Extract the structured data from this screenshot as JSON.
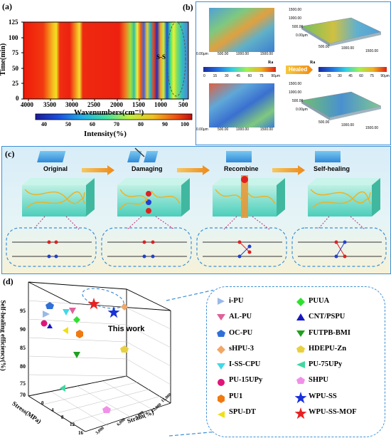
{
  "panel_a": {
    "label": "(a)",
    "y_axis_title": "Time(min)",
    "x_axis_title": "Wavenumbers(cm⁻¹)",
    "y_ticks": [
      "125",
      "100",
      "75",
      "50",
      "25",
      "0"
    ],
    "x_ticks": [
      "4000",
      "3500",
      "3000",
      "2500",
      "2000",
      "1500",
      "1000",
      "500"
    ],
    "annotation": "S-S",
    "colorbar_title": "Intensity(%)",
    "colorbar_ticks": [
      "40",
      "50",
      "60",
      "70",
      "80",
      "90",
      "100"
    ]
  },
  "panel_b": {
    "label": "(b)",
    "top_left_ticks": [
      "0.00μm",
      "500.00",
      "1000.00",
      "1500.00"
    ],
    "top_right_ticks": [
      "1500.00",
      "1000.00",
      "500.00",
      "0.00μm",
      "500.00",
      "1000.00",
      "1500.00"
    ],
    "ra_label": "Ra",
    "ra_ticks": [
      "0",
      "15",
      "30",
      "45",
      "60",
      "75",
      "90μm"
    ],
    "healed_label": "Healed",
    "bottom_left_ticks": [
      "0.00μm",
      "500.00",
      "1000.00",
      "1500.00"
    ],
    "bottom_right_ticks": [
      "1500.00",
      "1000.00",
      "500.00",
      "0.00μm",
      "500.00",
      "1000.00",
      "1500.00"
    ]
  },
  "panel_c": {
    "label": "(c)",
    "stages": [
      "Original",
      "Damaging",
      "Recombine",
      "Self-healing"
    ]
  },
  "panel_d": {
    "label": "(d)",
    "z_axis_title": "Self-healing efficiency(%)",
    "x_axis_title": "Stress(MPa)",
    "y_axis_title": "Strain(%)",
    "z_ticks": [
      "95",
      "90",
      "85",
      "80",
      "75",
      "70"
    ],
    "stress_ticks": [
      "0",
      "4",
      "8",
      "12",
      "16"
    ],
    "strain_ticks": [
      "3,000",
      "6,000",
      "9,000",
      "12,000",
      "15,000"
    ],
    "annotation": "This work",
    "legend": [
      {
        "name": "i-PU",
        "color": "#9ab8e8",
        "shape": "tri-right"
      },
      {
        "name": "AL-PU",
        "color": "#e0609a",
        "shape": "tri-down"
      },
      {
        "name": "OC-PU",
        "color": "#2f6fd8",
        "shape": "pentagon"
      },
      {
        "name": "sHPU-3",
        "color": "#f0a868",
        "shape": "diamond"
      },
      {
        "name": "I-SS-CPU",
        "color": "#40d8e8",
        "shape": "tri-down"
      },
      {
        "name": "PU-15UPy",
        "color": "#e0157a",
        "shape": "circle"
      },
      {
        "name": "PU1",
        "color": "#f07a10",
        "shape": "hexagon"
      },
      {
        "name": "SPU-DT",
        "color": "#f0e010",
        "shape": "tri-left"
      },
      {
        "name": "PUUA",
        "color": "#30e030",
        "shape": "diamond"
      },
      {
        "name": "CNT/PSPU",
        "color": "#1818c0",
        "shape": "tri-up"
      },
      {
        "name": "FUTPB-BMI",
        "color": "#20a020",
        "shape": "tri-down"
      },
      {
        "name": "HDEPU-Zn",
        "color": "#e8d040",
        "shape": "pentagon"
      },
      {
        "name": "PU-75UPy",
        "color": "#40d8a0",
        "shape": "tri-left"
      },
      {
        "name": "SHPU",
        "color": "#f090e8",
        "shape": "pentagon"
      },
      {
        "name": "WPU-SS",
        "color": "#1830d8",
        "shape": "star"
      },
      {
        "name": "WPU-SS-MOF",
        "color": "#e82020",
        "shape": "star"
      }
    ]
  }
}
